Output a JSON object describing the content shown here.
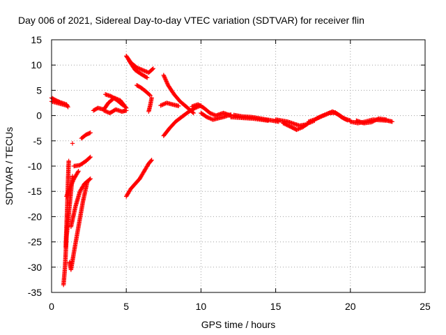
{
  "chart_data": {
    "type": "scatter",
    "title": "Day 006 of 2021, Sidereal Day-to-day VTEC variation (SDTVAR) for receiver flin",
    "xlabel": "GPS time / hours",
    "ylabel": "SDTVAR / TECUs",
    "xlim": [
      0,
      25
    ],
    "ylim": [
      -35,
      15
    ],
    "xticks": [
      "0",
      "5",
      "10",
      "15",
      "20",
      "25"
    ],
    "yticks": [
      "-35",
      "-30",
      "-25",
      "-20",
      "-15",
      "-10",
      "-5",
      "0",
      "5",
      "10",
      "15"
    ],
    "grid": true,
    "marker": "plus",
    "color": "#ff0000",
    "series": [
      {
        "segments": [
          [
            [
              0.0,
              3.5
            ],
            [
              0.3,
              3.0
            ],
            [
              0.6,
              2.6
            ],
            [
              1.0,
              2.2
            ],
            [
              1.1,
              1.7
            ]
          ],
          [
            [
              0.0,
              2.8
            ],
            [
              0.5,
              2.4
            ],
            [
              1.0,
              2.0
            ]
          ],
          [
            [
              0.8,
              -33.5
            ],
            [
              0.9,
              -30.0
            ],
            [
              0.95,
              -27.0
            ],
            [
              1.0,
              -24.0
            ],
            [
              1.1,
              -21.0
            ],
            [
              1.2,
              -18.0
            ],
            [
              1.3,
              -15.0
            ],
            [
              1.4,
              -12.0
            ]
          ],
          [
            [
              0.95,
              -26.0
            ],
            [
              1.0,
              -22.0
            ],
            [
              1.05,
              -18.0
            ],
            [
              1.1,
              -13.0
            ],
            [
              1.15,
              -9.0
            ]
          ],
          [
            [
              1.2,
              -29.0
            ],
            [
              1.3,
              -30.5
            ],
            [
              1.5,
              -27.0
            ],
            [
              1.8,
              -22.0
            ],
            [
              2.1,
              -17.0
            ],
            [
              2.4,
              -13.0
            ]
          ],
          [
            [
              1.3,
              -22.0
            ],
            [
              1.6,
              -18.0
            ],
            [
              1.9,
              -15.0
            ],
            [
              2.2,
              -13.5
            ],
            [
              2.6,
              -12.5
            ]
          ],
          [
            [
              1.0,
              -16.0
            ],
            [
              1.2,
              -14.5
            ],
            [
              1.5,
              -12.5
            ],
            [
              1.8,
              -11.0
            ]
          ],
          [
            [
              1.5,
              -10.0
            ],
            [
              1.9,
              -9.8
            ],
            [
              2.3,
              -9.0
            ],
            [
              2.6,
              -8.2
            ]
          ],
          [
            [
              2.0,
              -4.5
            ],
            [
              2.3,
              -3.8
            ],
            [
              2.6,
              -3.4
            ]
          ],
          [
            [
              1.4,
              -5.5
            ]
          ],
          [
            [
              2.8,
              1.0
            ],
            [
              3.1,
              1.5
            ],
            [
              3.5,
              1.2
            ],
            [
              3.8,
              2.5
            ],
            [
              4.2,
              3.5
            ],
            [
              4.6,
              3.0
            ],
            [
              5.0,
              1.5
            ]
          ],
          [
            [
              3.5,
              1.0
            ],
            [
              3.9,
              0.5
            ],
            [
              4.3,
              1.2
            ],
            [
              4.7,
              0.8
            ],
            [
              5.0,
              1.0
            ]
          ],
          [
            [
              3.6,
              4.2
            ],
            [
              4.0,
              3.8
            ],
            [
              4.4,
              3.0
            ],
            [
              4.8,
              2.0
            ]
          ],
          [
            [
              5.0,
              11.8
            ],
            [
              5.3,
              10.5
            ],
            [
              5.7,
              9.5
            ],
            [
              6.1,
              9.0
            ],
            [
              6.5,
              8.5
            ],
            [
              6.8,
              9.3
            ]
          ],
          [
            [
              5.2,
              10.8
            ],
            [
              5.6,
              9.0
            ],
            [
              6.0,
              8.2
            ],
            [
              6.4,
              7.5
            ]
          ],
          [
            [
              5.7,
              6.0
            ],
            [
              6.0,
              5.5
            ],
            [
              6.3,
              4.8
            ],
            [
              6.6,
              4.0
            ]
          ],
          [
            [
              5.0,
              -16.0
            ],
            [
              5.3,
              -14.5
            ],
            [
              5.6,
              -13.5
            ],
            [
              5.9,
              -12.5
            ],
            [
              6.2,
              -11.0
            ],
            [
              6.5,
              -9.5
            ],
            [
              6.7,
              -8.8
            ]
          ],
          [
            [
              6.7,
              3.5
            ],
            [
              6.6,
              2.0
            ],
            [
              6.5,
              0.8
            ]
          ],
          [
            [
              7.5,
              8.0
            ],
            [
              7.8,
              6.0
            ],
            [
              8.2,
              4.2
            ],
            [
              8.6,
              2.8
            ],
            [
              9.0,
              1.8
            ],
            [
              9.5,
              0.5
            ]
          ],
          [
            [
              7.3,
              2.0
            ],
            [
              7.7,
              2.5
            ],
            [
              8.1,
              2.2
            ],
            [
              8.5,
              1.9
            ]
          ],
          [
            [
              7.5,
              -4.0
            ],
            [
              7.9,
              -2.5
            ],
            [
              8.3,
              -1.2
            ],
            [
              8.7,
              -0.3
            ],
            [
              9.2,
              0.8
            ],
            [
              9.6,
              1.5
            ],
            [
              10.0,
              2.0
            ]
          ],
          [
            [
              9.4,
              1.8
            ],
            [
              9.8,
              2.2
            ],
            [
              10.2,
              1.5
            ],
            [
              10.6,
              0.5
            ],
            [
              11.0,
              0.0
            ],
            [
              11.5,
              0.5
            ],
            [
              12.0,
              0.0
            ]
          ],
          [
            [
              10.0,
              0.5
            ],
            [
              10.4,
              -0.3
            ],
            [
              10.8,
              -0.8
            ],
            [
              11.2,
              -0.5
            ],
            [
              11.6,
              -0.2
            ],
            [
              12.0,
              0.2
            ]
          ],
          [
            [
              12.0,
              -0.3
            ],
            [
              12.5,
              -0.4
            ],
            [
              13.0,
              -0.5
            ],
            [
              13.5,
              -0.6
            ],
            [
              14.0,
              -0.8
            ],
            [
              14.5,
              -1.0
            ]
          ],
          [
            [
              12.2,
              0.1
            ],
            [
              12.8,
              -0.2
            ],
            [
              13.4,
              -0.3
            ],
            [
              14.0,
              -0.6
            ],
            [
              14.6,
              -0.9
            ],
            [
              15.2,
              -1.2
            ]
          ],
          [
            [
              15.0,
              -0.8
            ],
            [
              15.4,
              -1.0
            ],
            [
              15.8,
              -1.2
            ],
            [
              16.2,
              -1.6
            ],
            [
              16.6,
              -2.0
            ],
            [
              17.0,
              -1.8
            ]
          ],
          [
            [
              15.5,
              -1.5
            ],
            [
              16.0,
              -2.2
            ],
            [
              16.4,
              -2.8
            ],
            [
              16.8,
              -2.3
            ],
            [
              17.2,
              -1.5
            ],
            [
              17.6,
              -1.0
            ]
          ],
          [
            [
              17.2,
              -1.2
            ],
            [
              17.6,
              -0.8
            ],
            [
              18.0,
              -0.2
            ],
            [
              18.4,
              0.3
            ],
            [
              18.8,
              0.8
            ],
            [
              19.2,
              0.2
            ],
            [
              19.6,
              -0.6
            ],
            [
              20.0,
              -1.0
            ]
          ],
          [
            [
              17.8,
              -0.5
            ],
            [
              18.2,
              0.0
            ],
            [
              18.6,
              0.5
            ],
            [
              19.0,
              0.6
            ],
            [
              19.4,
              -0.3
            ],
            [
              19.8,
              -0.9
            ]
          ],
          [
            [
              20.0,
              -1.2
            ],
            [
              20.5,
              -1.5
            ],
            [
              21.0,
              -1.2
            ],
            [
              21.5,
              -0.8
            ],
            [
              22.0,
              -0.9
            ],
            [
              22.5,
              -1.0
            ],
            [
              22.8,
              -1.2
            ]
          ],
          [
            [
              20.4,
              -1.0
            ],
            [
              20.9,
              -1.5
            ],
            [
              21.4,
              -1.3
            ],
            [
              21.9,
              -0.6
            ],
            [
              22.4,
              -0.8
            ]
          ]
        ]
      }
    ]
  }
}
